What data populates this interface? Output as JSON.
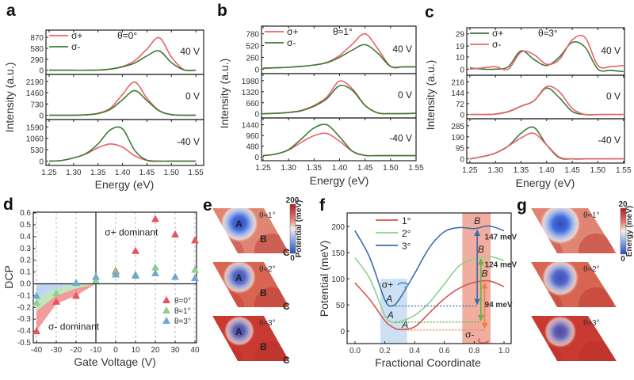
{
  "panel_letters": {
    "a": "a",
    "b": "b",
    "c": "c",
    "d": "d",
    "e": "e",
    "f": "f",
    "g": "g"
  },
  "chart_data": [
    {
      "panel": "a",
      "type": "line",
      "title": "θ=0°",
      "xlabel": "Energy (eV)",
      "ylabel": "Intensity (a.u.)",
      "x_ticks": [
        "1.25",
        "1.30",
        "1.35",
        "1.40",
        "1.45",
        "1.50",
        "1.55"
      ],
      "xlim": [
        1.2435,
        1.566
      ],
      "legend": [
        {
          "name": "σ+",
          "color": "#e8636a"
        },
        {
          "name": "σ-",
          "color": "#3b7a35"
        }
      ],
      "x": [
        1.25,
        1.275,
        1.3,
        1.325,
        1.35,
        1.375,
        1.4,
        1.425,
        1.45,
        1.475,
        1.5,
        1.525,
        1.55
      ],
      "subplots": [
        {
          "label": "40 V",
          "y_ticks": [
            "0",
            "290",
            "580",
            "870"
          ],
          "ylim": [
            -110,
            1060
          ],
          "series": [
            {
              "name": "σ+",
              "color": "#e8636a",
              "values": [
                0,
                0,
                0,
                0,
                5,
                30,
                100,
                250,
                560,
                860,
                350,
                20,
                0
              ]
            },
            {
              "name": "σ-",
              "color": "#3b7a35",
              "values": [
                0,
                0,
                0,
                0,
                5,
                30,
                90,
                190,
                380,
                510,
                200,
                10,
                0
              ]
            }
          ]
        },
        {
          "label": "0 V",
          "y_ticks": [
            "0",
            "730",
            "1460",
            "2190"
          ],
          "ylim": [
            -280,
            2650
          ],
          "series": [
            {
              "name": "σ+",
              "color": "#e8636a",
              "values": [
                0,
                0,
                0,
                30,
                130,
                450,
                1350,
                2150,
                1100,
                300,
                40,
                0,
                0
              ]
            },
            {
              "name": "σ-",
              "color": "#3b7a35",
              "values": [
                0,
                0,
                0,
                25,
                110,
                380,
                1000,
                1600,
                950,
                280,
                40,
                0,
                0
              ]
            }
          ]
        },
        {
          "label": "-40 V",
          "y_ticks": [
            "0",
            "530",
            "1060",
            "1590"
          ],
          "ylim": [
            -200,
            1930
          ],
          "series": [
            {
              "name": "σ+",
              "color": "#e8636a",
              "values": [
                0,
                30,
                150,
                330,
                620,
                800,
                650,
                250,
                40,
                0,
                0,
                0,
                0
              ]
            },
            {
              "name": "σ-",
              "color": "#3b7a35",
              "values": [
                0,
                30,
                150,
                350,
                800,
                1450,
                1500,
                500,
                40,
                0,
                0,
                0,
                0
              ]
            }
          ]
        }
      ]
    },
    {
      "panel": "b",
      "type": "line",
      "title": "θ≈1°",
      "xlabel": "Energy (eV)",
      "ylabel": "Intensity (a.u.)",
      "x_ticks": [
        "1.25",
        "1.30",
        "1.35",
        "1.40",
        "1.45",
        "1.50",
        "1.55"
      ],
      "xlim": [
        1.247,
        1.55
      ],
      "legend": [
        {
          "name": "σ+",
          "color": "#e8636a"
        },
        {
          "name": "σ-",
          "color": "#3b7a35"
        }
      ],
      "x": [
        1.25,
        1.275,
        1.3,
        1.325,
        1.35,
        1.375,
        1.4,
        1.425,
        1.45,
        1.475,
        1.5,
        1.525,
        1.55
      ],
      "subplots": [
        {
          "label": "40 V",
          "y_ticks": [
            "0",
            "260",
            "520",
            "780"
          ],
          "ylim": [
            -100,
            950
          ],
          "series": [
            {
              "name": "σ+",
              "color": "#e8636a",
              "values": [
                20,
                30,
                40,
                60,
                90,
                150,
                300,
                550,
                780,
                450,
                60,
                50,
                50
              ]
            },
            {
              "name": "σ-",
              "color": "#3b7a35",
              "values": [
                20,
                30,
                40,
                60,
                90,
                140,
                260,
                420,
                540,
                350,
                60,
                50,
                50
              ]
            }
          ]
        },
        {
          "label": "0 V",
          "y_ticks": [
            "0",
            "660",
            "1320",
            "1980"
          ],
          "ylim": [
            -250,
            2400
          ],
          "series": [
            {
              "name": "σ+",
              "color": "#e8636a",
              "values": [
                0,
                30,
                80,
                200,
                500,
                1000,
                1950,
                1500,
                500,
                50,
                10,
                10,
                30
              ]
            },
            {
              "name": "σ-",
              "color": "#3b7a35",
              "values": [
                0,
                30,
                80,
                180,
                450,
                900,
                1680,
                1400,
                500,
                50,
                10,
                10,
                30
              ]
            }
          ]
        },
        {
          "label": "-40 V",
          "y_ticks": [
            "0",
            "480",
            "960",
            "1440"
          ],
          "ylim": [
            -180,
            1750
          ],
          "series": [
            {
              "name": "σ+",
              "color": "#e8636a",
              "values": [
                50,
                120,
                300,
                650,
                950,
                1050,
                700,
                250,
                60,
                50,
                50,
                50,
                50
              ]
            },
            {
              "name": "σ-",
              "color": "#3b7a35",
              "values": [
                50,
                120,
                320,
                800,
                1300,
                1440,
                900,
                250,
                60,
                50,
                50,
                50,
                50
              ]
            }
          ]
        }
      ]
    },
    {
      "panel": "c",
      "type": "line",
      "title": "θ≈3°",
      "xlabel": "Energy (eV)",
      "ylabel": "Intensity (a.u.)",
      "x_ticks": [
        "1.25",
        "1.30",
        "1.35",
        "1.40",
        "1.45",
        "1.50",
        "1.55"
      ],
      "xlim": [
        1.244,
        1.552
      ],
      "legend": [
        {
          "name": "σ+",
          "color": "#3b7a35"
        },
        {
          "name": "σ-",
          "color": "#e8636a"
        }
      ],
      "x": [
        1.25,
        1.275,
        1.3,
        1.325,
        1.35,
        1.375,
        1.4,
        1.425,
        1.45,
        1.475,
        1.5,
        1.525,
        1.55
      ],
      "subplots": [
        {
          "label": "40 V",
          "y_ticks": [
            "0",
            "10",
            "19",
            "29"
          ],
          "ylim": [
            -5,
            34
          ],
          "series": [
            {
              "name": "σ+",
              "color": "#3b7a35",
              "values": [
                1,
                0,
                0,
                2,
                15,
                8,
                3,
                10,
                22,
                18,
                0,
                -1,
                -2
              ]
            },
            {
              "name": "σ-",
              "color": "#e8636a",
              "values": [
                0,
                1,
                2,
                0,
                14,
                12,
                4,
                8,
                24,
                26,
                3,
                2,
                3
              ]
            }
          ]
        },
        {
          "label": "0 V",
          "y_ticks": [
            "0",
            "72",
            "144",
            "216"
          ],
          "ylim": [
            -28,
            260
          ],
          "series": [
            {
              "name": "σ+",
              "color": "#3b7a35",
              "values": [
                0,
                0,
                3,
                20,
                55,
                90,
                175,
                110,
                20,
                0,
                0,
                0,
                0
              ]
            },
            {
              "name": "σ-",
              "color": "#e8636a",
              "values": [
                0,
                0,
                3,
                18,
                55,
                90,
                185,
                150,
                40,
                0,
                0,
                0,
                0
              ]
            }
          ]
        },
        {
          "label": "-40 V",
          "y_ticks": [
            "0",
            "95",
            "190",
            "285"
          ],
          "ylim": [
            -36,
            345
          ],
          "series": [
            {
              "name": "σ+",
              "color": "#3b7a35",
              "values": [
                0,
                20,
                50,
                110,
                220,
                270,
                120,
                10,
                0,
                0,
                0,
                0,
                0
              ]
            },
            {
              "name": "σ-",
              "color": "#e8636a",
              "values": [
                0,
                20,
                50,
                110,
                180,
                220,
                120,
                15,
                0,
                0,
                0,
                0,
                0
              ]
            }
          ]
        }
      ]
    },
    {
      "panel": "d",
      "type": "scatter",
      "xlabel": "Gate Voltage (V)",
      "ylabel": "DCP",
      "xlim": [
        -41.6,
        40.8
      ],
      "ylim": [
        -0.5,
        0.607
      ],
      "x_ticks": [
        "-40",
        "-30",
        "-20",
        "-10",
        "0",
        "10",
        "20",
        "30",
        "40"
      ],
      "y_ticks": [
        "-0.5",
        "-0.4",
        "-0.3",
        "-0.2",
        "-0.1",
        "0.0",
        "0.1",
        "0.2",
        "0.3",
        "0.4",
        "0.5",
        "0.6"
      ],
      "grid": "vertical dashed",
      "legend_position": "bottom-right",
      "annotations": {
        "upper": "σ+ dominant",
        "lower": "σ- dominant"
      },
      "x": [
        -40,
        -30,
        -20,
        -10,
        0,
        10,
        20,
        30,
        40
      ],
      "series": [
        {
          "name": "θ=0°",
          "color": "#e8545a",
          "values": [
            -0.4,
            -0.15,
            -0.1,
            null,
            0.11,
            0.28,
            0.55,
            0.42,
            0.37
          ]
        },
        {
          "name": "θ≈1°",
          "color": "#8fcf8f",
          "values": [
            -0.16,
            -0.08,
            null,
            0.03,
            0.1,
            0.08,
            0.14,
            null,
            0.12
          ]
        },
        {
          "name": "θ=3°",
          "color": "#6fa8d6",
          "values": [
            -0.1,
            null,
            0.01,
            0.06,
            0.08,
            0.07,
            0.09,
            0.06,
            0.05
          ]
        }
      ],
      "shaded_regions": [
        {
          "color": "#f08a8a",
          "points": [
            [
              -40,
              -0.4
            ],
            [
              -30,
              -0.17
            ],
            [
              -20,
              -0.1
            ],
            [
              -10,
              0
            ],
            [
              -20,
              -0.04
            ],
            [
              -30,
              -0.1
            ],
            [
              -40,
              -0.23
            ]
          ]
        },
        {
          "color": "#b6e0b0",
          "points": [
            [
              -40,
              -0.23
            ],
            [
              -30,
              -0.1
            ],
            [
              -20,
              -0.04
            ],
            [
              -10,
              0
            ],
            [
              -20,
              0
            ],
            [
              -30,
              -0.04
            ],
            [
              -40,
              -0.12
            ]
          ]
        },
        {
          "color": "#b3cfee",
          "points": [
            [
              -40,
              -0.12
            ],
            [
              -30,
              -0.04
            ],
            [
              -20,
              0
            ],
            [
              -10,
              0
            ],
            [
              -40,
              0
            ]
          ]
        }
      ]
    },
    {
      "panel": "e",
      "type": "heatmap",
      "colorbar": {
        "label": "Potential (meV)",
        "max": "200",
        "min": "0"
      },
      "maps": [
        {
          "title": "θ≈1°",
          "well_depth": 1.0,
          "sites": [
            "A",
            "B",
            "C"
          ]
        },
        {
          "title": "θ≈2°",
          "well_depth": 0.7,
          "sites": [
            "A",
            "B",
            "C"
          ]
        },
        {
          "title": "θ≈3°",
          "well_depth": 0.5,
          "sites": [
            "A",
            "B",
            "C"
          ]
        }
      ]
    },
    {
      "panel": "f",
      "type": "line",
      "xlabel": "Fractional Coordinate",
      "ylabel": "Potential (meV)",
      "xlim": [
        -0.053,
        1.048
      ],
      "ylim": [
        -24,
        226
      ],
      "x_ticks": [
        "0.0",
        "0.2",
        "0.4",
        "0.6",
        "0.8",
        "1.0"
      ],
      "y_ticks": [
        "0",
        "50",
        "100",
        "150",
        "200"
      ],
      "legend_position": "top-left",
      "x": [
        0,
        0.1,
        0.2,
        0.25,
        0.3,
        0.4,
        0.5,
        0.6,
        0.7,
        0.8,
        0.9,
        1.0
      ],
      "series": [
        {
          "name": "1°",
          "color": "#d9534f",
          "values": [
            92,
            60,
            20,
            8,
            3,
            8,
            35,
            62,
            82,
            93,
            96,
            85
          ],
          "min_x": 0.31,
          "min": 2,
          "max_x": 0.87,
          "max": 95,
          "barrier": "94 meV",
          "arrow_color": "#f08040"
        },
        {
          "name": "2°",
          "color": "#8fd08f",
          "values": [
            140,
            100,
            30,
            17,
            18,
            30,
            55,
            90,
            125,
            138,
            143,
            135
          ],
          "min_x": 0.27,
          "min": 17,
          "max_x": 0.845,
          "max": 141,
          "barrier": "124 meV",
          "arrow_color": "#6ab04c"
        },
        {
          "name": "3°",
          "color": "#3a6ea5",
          "values": [
            192,
            140,
            60,
            48,
            62,
            110,
            160,
            190,
            198,
            196,
            201,
            192
          ],
          "min_x": 0.23,
          "min": 48,
          "max_x": 0.82,
          "max": 196,
          "barrier": "147 meV",
          "arrow_color": "#3a6ea5"
        }
      ],
      "site_labels": {
        "A": "A",
        "B": "B"
      },
      "regions": [
        {
          "label": "σ+",
          "color": "#c6dcf2",
          "x": [
            0.17,
            0.35
          ],
          "y": [
            -24,
            100
          ]
        },
        {
          "label": "σ-",
          "color": "#eda08f",
          "x": [
            0.72,
            0.91
          ],
          "y": [
            -24,
            226
          ]
        }
      ]
    },
    {
      "panel": "g",
      "type": "heatmap",
      "colorbar": {
        "label": "Energy (meV)",
        "max": "20",
        "min": "0"
      },
      "maps": [
        {
          "title": "θ≈1°",
          "well_depth": 1.0
        },
        {
          "title": "θ≈2°",
          "well_depth": 0.75
        },
        {
          "title": "θ≈3°",
          "well_depth": 0.45
        }
      ]
    }
  ]
}
